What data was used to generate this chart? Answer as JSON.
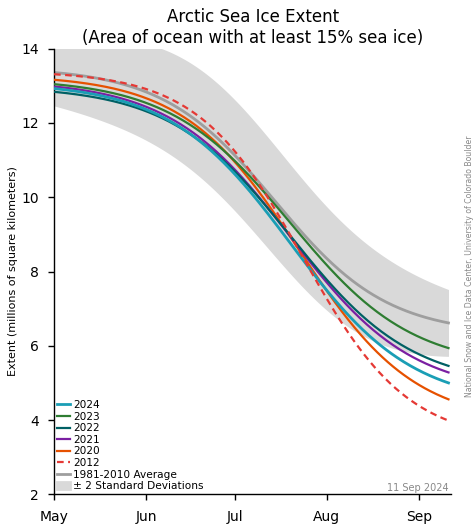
{
  "title": "Arctic Sea Ice Extent",
  "subtitle": "(Area of ocean with at least 15% sea ice)",
  "ylabel": "Extent (millions of square kilometers)",
  "xlabel_ticks": [
    "May",
    "Jun",
    "Jul",
    "Aug",
    "Sep"
  ],
  "ylim": [
    2,
    14
  ],
  "yticks": [
    2,
    4,
    6,
    8,
    10,
    12,
    14
  ],
  "background_color": "#ffffff",
  "plot_bg": "#ffffff",
  "line_colors": {
    "2024": "#1a9eb5",
    "2023": "#2e7d32",
    "2022": "#006064",
    "2021": "#7b1fa2",
    "2020": "#e65100",
    "2012_color": "#e53935",
    "average": "#9e9e9e",
    "std_fill": "#d9d9d9"
  },
  "watermark": "11 Sep 2024",
  "may1": 121,
  "sep11": 254,
  "tick_days": [
    121,
    152,
    182,
    213,
    244
  ]
}
